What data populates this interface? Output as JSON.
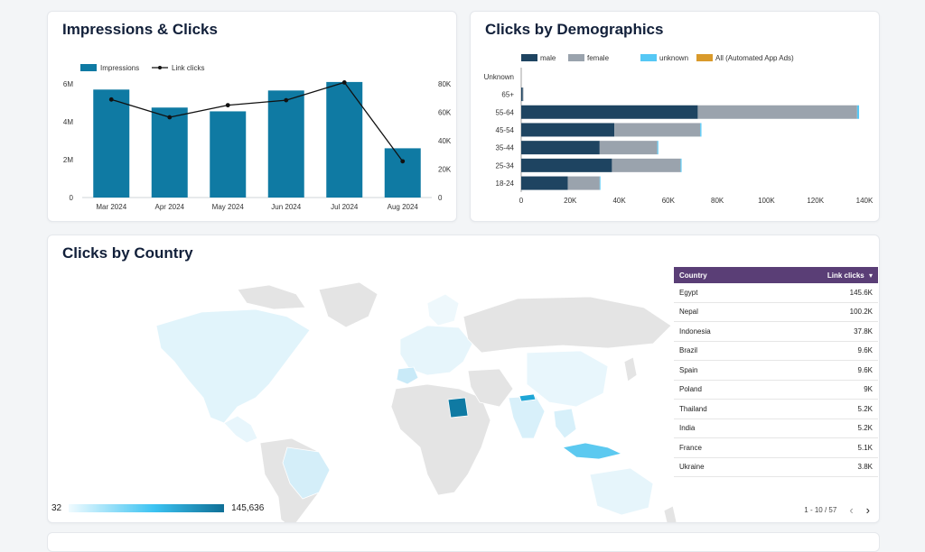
{
  "colors": {
    "bar_primary": "#0f7aa3",
    "line": "#111111",
    "male": "#1e4461",
    "female": "#9aa3ad",
    "unknown": "#56c8f5",
    "all_app_ads": "#d99a2b",
    "table_header": "#5a3e76",
    "highlight_country": "#0f7aa3"
  },
  "impressions_card": {
    "title": "Impressions & Clicks",
    "legend_impressions": "Impressions",
    "legend_clicks": "Link clicks"
  },
  "demographics_card": {
    "title": "Clicks by Demographics",
    "legend": [
      "male",
      "female",
      "unknown",
      "All (Automated App Ads)"
    ]
  },
  "country_card": {
    "title": "Clicks by Country",
    "scale_min": "32",
    "scale_max": "145,636",
    "table_header_country": "Country",
    "table_header_clicks": "Link clicks",
    "sort_icon": "▾",
    "rows": [
      {
        "country": "Egypt",
        "clicks": "145.6K"
      },
      {
        "country": "Nepal",
        "clicks": "100.2K"
      },
      {
        "country": "Indonesia",
        "clicks": "37.8K"
      },
      {
        "country": "Brazil",
        "clicks": "9.6K"
      },
      {
        "country": "Spain",
        "clicks": "9.6K"
      },
      {
        "country": "Poland",
        "clicks": "9K"
      },
      {
        "country": "Thailand",
        "clicks": "5.2K"
      },
      {
        "country": "India",
        "clicks": "5.2K"
      },
      {
        "country": "France",
        "clicks": "5.1K"
      },
      {
        "country": "Ukraine",
        "clicks": "3.8K"
      }
    ],
    "pagination": "1 - 10 / 57",
    "prev_icon": "‹",
    "next_icon": "›"
  },
  "chart_data": [
    {
      "type": "bar",
      "title": "Impressions & Clicks",
      "categories": [
        "Mar 2024",
        "Apr 2024",
        "May 2024",
        "Jun 2024",
        "Jul 2024",
        "Aug 2024"
      ],
      "series": [
        {
          "name": "Impressions",
          "kind": "bar",
          "axis": "left",
          "values": [
            5700000,
            4750000,
            4550000,
            5650000,
            6100000,
            2600000
          ]
        },
        {
          "name": "Link clicks",
          "kind": "line",
          "axis": "right",
          "values": [
            69000,
            56500,
            65000,
            68500,
            81000,
            25500
          ]
        }
      ],
      "ylim_left": [
        0,
        6000000
      ],
      "yticks_left": [
        "0",
        "2M",
        "4M",
        "6M"
      ],
      "ylim_right": [
        0,
        80000
      ],
      "yticks_right": [
        "0",
        "20K",
        "40K",
        "60K",
        "80K"
      ],
      "legend_position": "top-left",
      "grid": false
    },
    {
      "type": "bar",
      "orientation": "horizontal",
      "stacked": true,
      "title": "Clicks by Demographics",
      "categories": [
        "Unknown",
        "65+",
        "55-64",
        "45-54",
        "35-44",
        "25-34",
        "18-24"
      ],
      "series": [
        {
          "name": "male",
          "values": [
            0,
            600,
            72000,
            38000,
            32000,
            37000,
            19000
          ]
        },
        {
          "name": "female",
          "values": [
            0,
            300,
            65000,
            35000,
            23500,
            28000,
            13000
          ]
        },
        {
          "name": "unknown",
          "values": [
            0,
            0,
            800,
            500,
            400,
            400,
            300
          ]
        },
        {
          "name": "All (Automated App Ads)",
          "values": [
            0,
            0,
            0,
            0,
            0,
            0,
            0
          ]
        }
      ],
      "xlim": [
        0,
        140000
      ],
      "xticks": [
        "0",
        "20K",
        "40K",
        "60K",
        "80K",
        "100K",
        "120K",
        "140K"
      ],
      "legend_position": "top",
      "grid": false
    },
    {
      "type": "table",
      "title": "Clicks by Country",
      "columns": [
        "Country",
        "Link clicks"
      ],
      "rows": [
        [
          "Egypt",
          145600
        ],
        [
          "Nepal",
          100200
        ],
        [
          "Indonesia",
          37800
        ],
        [
          "Brazil",
          9600
        ],
        [
          "Spain",
          9600
        ],
        [
          "Poland",
          9000
        ],
        [
          "Thailand",
          5200
        ],
        [
          "India",
          5200
        ],
        [
          "France",
          5100
        ],
        [
          "Ukraine",
          3800
        ]
      ],
      "color_scale": [
        32,
        145636
      ]
    }
  ]
}
